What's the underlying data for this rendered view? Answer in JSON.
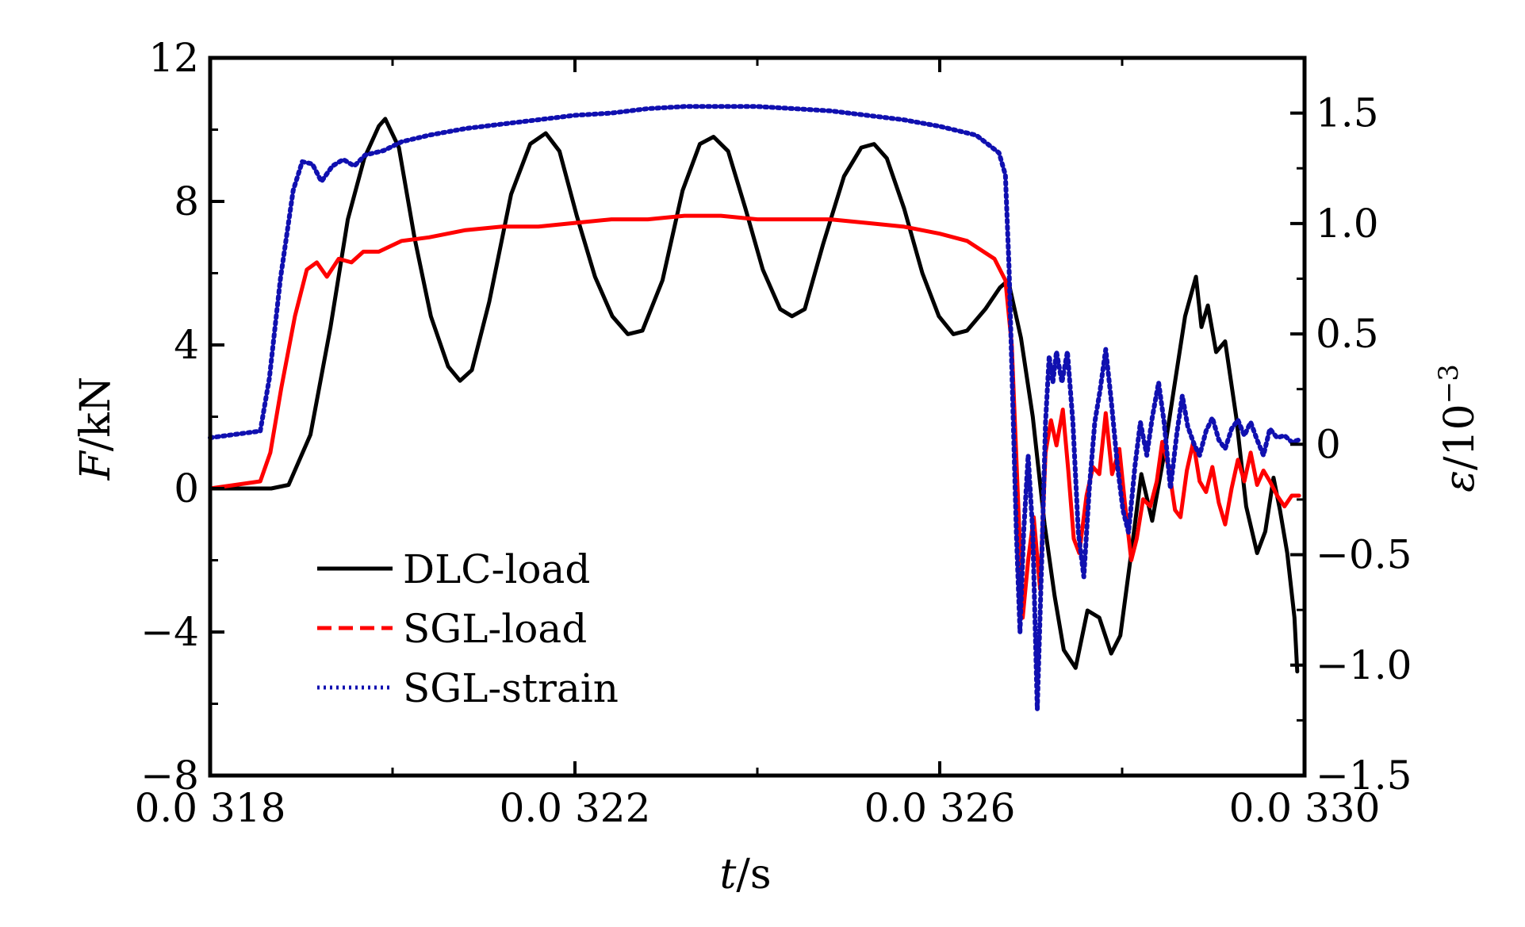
{
  "chart_data": {
    "type": "line",
    "xlabel": {
      "var": "t",
      "unit": "/s"
    },
    "ylabel_left": {
      "var": "F",
      "unit": "/kN"
    },
    "ylabel_right": {
      "var": "ε",
      "unit": "/10",
      "exp": "−3"
    },
    "xlim": [
      0.0318,
      0.033
    ],
    "ylim_left": [
      -8,
      12
    ],
    "ylim_right": [
      -1.5,
      1.75
    ],
    "x_ticks": [
      0.0318,
      0.0322,
      0.0326,
      0.033
    ],
    "x_tick_labels": [
      "0.0 318",
      "0.0 322",
      "0.0 326",
      "0.0 330"
    ],
    "y_left_ticks": [
      -8,
      -4,
      0,
      4,
      8,
      12
    ],
    "y_left_tick_labels": [
      "−8",
      "−4",
      "0",
      "4",
      "8",
      "12"
    ],
    "y_right_ticks": [
      -1.5,
      -1.0,
      -0.5,
      0,
      0.5,
      1.0,
      1.5
    ],
    "y_right_tick_labels": [
      "−1.5",
      "−1.0",
      "−0.5",
      "0",
      "0.5",
      "1.0",
      "1.5"
    ],
    "grid": false,
    "legend_position": "lower-left",
    "series": [
      {
        "name": "DLC-load",
        "axis": "left",
        "color": "#000000",
        "style": "solid",
        "points": [
          [
            0.0318,
            0.0
          ],
          [
            0.031867,
            0.0
          ],
          [
            0.031886,
            0.1
          ],
          [
            0.03191,
            1.5
          ],
          [
            0.031932,
            4.5
          ],
          [
            0.031951,
            7.5
          ],
          [
            0.031969,
            9.2
          ],
          [
            0.031985,
            10.1
          ],
          [
            0.031992,
            10.3
          ],
          [
            0.032007,
            9.5
          ],
          [
            0.032024,
            7.0
          ],
          [
            0.032042,
            4.8
          ],
          [
            0.032061,
            3.4
          ],
          [
            0.032074,
            3.0
          ],
          [
            0.032087,
            3.3
          ],
          [
            0.032106,
            5.2
          ],
          [
            0.03213,
            8.2
          ],
          [
            0.032151,
            9.6
          ],
          [
            0.032168,
            9.9
          ],
          [
            0.032183,
            9.4
          ],
          [
            0.032202,
            7.6
          ],
          [
            0.032222,
            5.9
          ],
          [
            0.032241,
            4.8
          ],
          [
            0.032258,
            4.3
          ],
          [
            0.032274,
            4.4
          ],
          [
            0.032296,
            5.8
          ],
          [
            0.032318,
            8.3
          ],
          [
            0.032337,
            9.6
          ],
          [
            0.032352,
            9.8
          ],
          [
            0.032368,
            9.4
          ],
          [
            0.032387,
            7.8
          ],
          [
            0.032406,
            6.1
          ],
          [
            0.032425,
            5.0
          ],
          [
            0.032438,
            4.8
          ],
          [
            0.032452,
            5.0
          ],
          [
            0.032472,
            6.8
          ],
          [
            0.032495,
            8.7
          ],
          [
            0.032514,
            9.5
          ],
          [
            0.032528,
            9.6
          ],
          [
            0.032542,
            9.2
          ],
          [
            0.032561,
            7.8
          ],
          [
            0.032581,
            6.0
          ],
          [
            0.032599,
            4.8
          ],
          [
            0.032615,
            4.3
          ],
          [
            0.03263,
            4.4
          ],
          [
            0.03265,
            5.0
          ],
          [
            0.032666,
            5.6
          ],
          [
            0.032675,
            5.8
          ],
          [
            0.032689,
            4.2
          ],
          [
            0.032702,
            2.0
          ],
          [
            0.032715,
            -1.0
          ],
          [
            0.032726,
            -3.0
          ],
          [
            0.032736,
            -4.5
          ],
          [
            0.032749,
            -5.0
          ],
          [
            0.032762,
            -3.4
          ],
          [
            0.032775,
            -3.6
          ],
          [
            0.032788,
            -4.6
          ],
          [
            0.032798,
            -4.1
          ],
          [
            0.032809,
            -2.0
          ],
          [
            0.032821,
            0.4
          ],
          [
            0.032833,
            -0.9
          ],
          [
            0.032845,
            0.8
          ],
          [
            0.032857,
            2.8
          ],
          [
            0.032869,
            4.8
          ],
          [
            0.032881,
            5.9
          ],
          [
            0.032887,
            4.5
          ],
          [
            0.032894,
            5.1
          ],
          [
            0.032903,
            3.8
          ],
          [
            0.032913,
            4.1
          ],
          [
            0.032925,
            2.0
          ],
          [
            0.032936,
            -0.5
          ],
          [
            0.032948,
            -1.8
          ],
          [
            0.032957,
            -1.2
          ],
          [
            0.032966,
            0.3
          ],
          [
            0.032973,
            -0.6
          ],
          [
            0.032981,
            -1.8
          ],
          [
            0.032989,
            -3.6
          ],
          [
            0.032992,
            -5.1
          ]
        ]
      },
      {
        "name": "SGL-load",
        "axis": "left",
        "color": "#ff0000",
        "style": "solid",
        "points": [
          [
            0.0318,
            0.0
          ],
          [
            0.031855,
            0.2
          ],
          [
            0.031866,
            1.0
          ],
          [
            0.031878,
            2.8
          ],
          [
            0.031893,
            4.8
          ],
          [
            0.031906,
            6.1
          ],
          [
            0.031917,
            6.3
          ],
          [
            0.031928,
            5.9
          ],
          [
            0.031941,
            6.4
          ],
          [
            0.031955,
            6.3
          ],
          [
            0.031968,
            6.6
          ],
          [
            0.031985,
            6.6
          ],
          [
            0.03201,
            6.9
          ],
          [
            0.03204,
            7.0
          ],
          [
            0.03208,
            7.2
          ],
          [
            0.03212,
            7.3
          ],
          [
            0.03216,
            7.3
          ],
          [
            0.0322,
            7.4
          ],
          [
            0.03224,
            7.5
          ],
          [
            0.03228,
            7.5
          ],
          [
            0.03232,
            7.6
          ],
          [
            0.03236,
            7.6
          ],
          [
            0.0324,
            7.5
          ],
          [
            0.03244,
            7.5
          ],
          [
            0.03248,
            7.5
          ],
          [
            0.03252,
            7.4
          ],
          [
            0.03256,
            7.3
          ],
          [
            0.0326,
            7.1
          ],
          [
            0.03263,
            6.9
          ],
          [
            0.03266,
            6.4
          ],
          [
            0.032672,
            5.8
          ],
          [
            0.032679,
            4.0
          ],
          [
            0.032683,
            1.5
          ],
          [
            0.032687,
            -1.0
          ],
          [
            0.032691,
            -3.6
          ],
          [
            0.032697,
            -2.0
          ],
          [
            0.032703,
            -0.8
          ],
          [
            0.03271,
            -2.8
          ],
          [
            0.032716,
            1.0
          ],
          [
            0.032722,
            1.9
          ],
          [
            0.032728,
            1.2
          ],
          [
            0.032735,
            2.2
          ],
          [
            0.032741,
            0.5
          ],
          [
            0.032747,
            -1.4
          ],
          [
            0.032753,
            -1.8
          ],
          [
            0.032761,
            -0.2
          ],
          [
            0.032768,
            0.6
          ],
          [
            0.032775,
            0.4
          ],
          [
            0.032782,
            2.1
          ],
          [
            0.032789,
            0.4
          ],
          [
            0.032797,
            1.1
          ],
          [
            0.032803,
            -0.4
          ],
          [
            0.03281,
            -2.0
          ],
          [
            0.032816,
            -1.4
          ],
          [
            0.032823,
            -0.3
          ],
          [
            0.032831,
            -0.5
          ],
          [
            0.032838,
            0.2
          ],
          [
            0.032844,
            1.3
          ],
          [
            0.032851,
            0.6
          ],
          [
            0.032858,
            -0.6
          ],
          [
            0.032864,
            -0.8
          ],
          [
            0.032871,
            0.5
          ],
          [
            0.032878,
            1.3
          ],
          [
            0.032885,
            0.2
          ],
          [
            0.032892,
            -0.1
          ],
          [
            0.032899,
            0.6
          ],
          [
            0.032906,
            -0.4
          ],
          [
            0.032913,
            -1.0
          ],
          [
            0.03292,
            0.0
          ],
          [
            0.032927,
            0.8
          ],
          [
            0.032934,
            0.2
          ],
          [
            0.032941,
            1.0
          ],
          [
            0.032948,
            0.1
          ],
          [
            0.032955,
            0.5
          ],
          [
            0.032962,
            0.2
          ],
          [
            0.03297,
            -0.2
          ],
          [
            0.032978,
            -0.5
          ],
          [
            0.032986,
            -0.2
          ],
          [
            0.032994,
            -0.2
          ]
        ]
      },
      {
        "name": "SGL-strain",
        "axis": "right",
        "color": "#1010b0",
        "style": "dotted",
        "points": [
          [
            0.0318,
            0.03
          ],
          [
            0.031855,
            0.06
          ],
          [
            0.031865,
            0.3
          ],
          [
            0.031877,
            0.75
          ],
          [
            0.031891,
            1.15
          ],
          [
            0.031901,
            1.28
          ],
          [
            0.031912,
            1.27
          ],
          [
            0.031922,
            1.19
          ],
          [
            0.031934,
            1.26
          ],
          [
            0.031946,
            1.29
          ],
          [
            0.031958,
            1.26
          ],
          [
            0.03197,
            1.31
          ],
          [
            0.03199,
            1.33
          ],
          [
            0.03201,
            1.37
          ],
          [
            0.03204,
            1.4
          ],
          [
            0.03208,
            1.43
          ],
          [
            0.03212,
            1.45
          ],
          [
            0.03216,
            1.47
          ],
          [
            0.0322,
            1.49
          ],
          [
            0.03224,
            1.5
          ],
          [
            0.03228,
            1.52
          ],
          [
            0.03232,
            1.53
          ],
          [
            0.03236,
            1.53
          ],
          [
            0.0324,
            1.53
          ],
          [
            0.03244,
            1.52
          ],
          [
            0.03248,
            1.51
          ],
          [
            0.03252,
            1.49
          ],
          [
            0.03256,
            1.47
          ],
          [
            0.0326,
            1.44
          ],
          [
            0.03264,
            1.4
          ],
          [
            0.032665,
            1.32
          ],
          [
            0.032672,
            1.22
          ],
          [
            0.032676,
            0.8
          ],
          [
            0.03268,
            0.2
          ],
          [
            0.032684,
            -0.4
          ],
          [
            0.032688,
            -0.85
          ],
          [
            0.032692,
            -0.4
          ],
          [
            0.032697,
            -0.05
          ],
          [
            0.032702,
            -0.4
          ],
          [
            0.032707,
            -1.2
          ],
          [
            0.032712,
            -0.5
          ],
          [
            0.032716,
            0.1
          ],
          [
            0.03272,
            0.4
          ],
          [
            0.032724,
            0.28
          ],
          [
            0.032728,
            0.42
          ],
          [
            0.032734,
            0.28
          ],
          [
            0.03274,
            0.42
          ],
          [
            0.032746,
            0.1
          ],
          [
            0.032752,
            -0.4
          ],
          [
            0.032758,
            -0.6
          ],
          [
            0.032764,
            -0.2
          ],
          [
            0.03277,
            0.1
          ],
          [
            0.032776,
            0.25
          ],
          [
            0.032782,
            0.43
          ],
          [
            0.032788,
            0.2
          ],
          [
            0.032795,
            -0.1
          ],
          [
            0.032801,
            -0.3
          ],
          [
            0.032807,
            -0.4
          ],
          [
            0.032814,
            -0.1
          ],
          [
            0.03282,
            0.1
          ],
          [
            0.032827,
            -0.05
          ],
          [
            0.032833,
            0.12
          ],
          [
            0.03284,
            0.28
          ],
          [
            0.032846,
            0.1
          ],
          [
            0.032853,
            -0.2
          ],
          [
            0.03286,
            0.05
          ],
          [
            0.032866,
            0.22
          ],
          [
            0.032872,
            0.08
          ],
          [
            0.032879,
            0.0
          ],
          [
            0.032885,
            -0.05
          ],
          [
            0.032892,
            0.06
          ],
          [
            0.032899,
            0.12
          ],
          [
            0.032906,
            0.02
          ],
          [
            0.032913,
            -0.02
          ],
          [
            0.03292,
            0.07
          ],
          [
            0.032927,
            0.11
          ],
          [
            0.032934,
            0.04
          ],
          [
            0.032941,
            0.1
          ],
          [
            0.032948,
            0.02
          ],
          [
            0.032955,
            -0.05
          ],
          [
            0.032962,
            0.07
          ],
          [
            0.03297,
            0.03
          ],
          [
            0.032978,
            0.04
          ],
          [
            0.032986,
            0.01
          ],
          [
            0.032994,
            0.02
          ]
        ]
      }
    ]
  }
}
